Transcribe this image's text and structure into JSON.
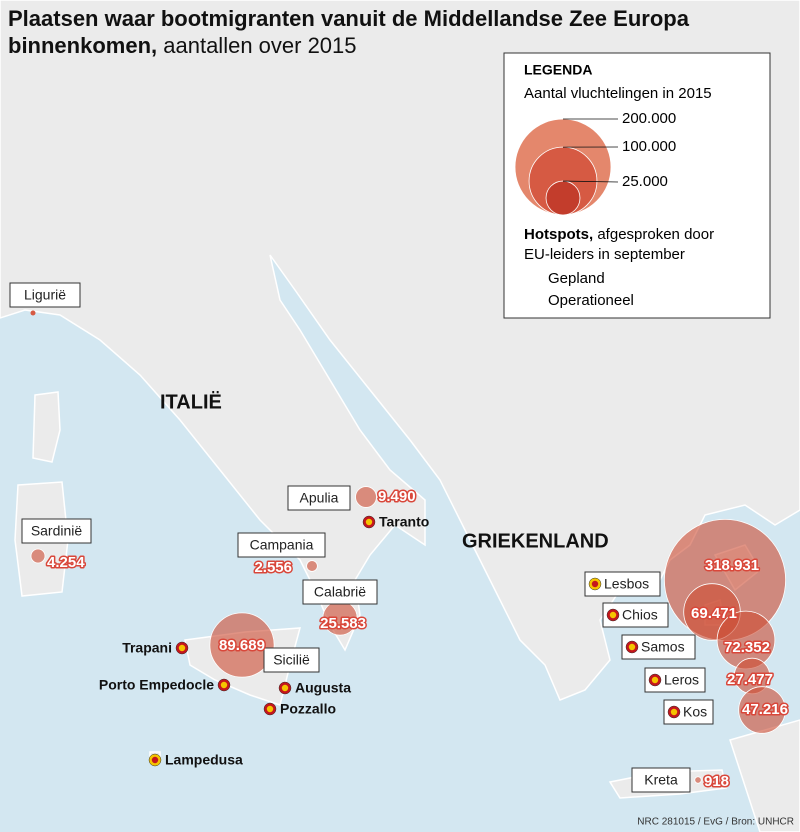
{
  "title_line1": "Plaatsen waar bootmigranten vanuit de Middellandse Zee Europa",
  "title_line2_bold": "binnenkomen,",
  "title_line2_rest": "aantallen over 2015",
  "legend": {
    "title": "LEGENDA",
    "subtitle": "Aantal vluchtelingen in 2015",
    "sizes": [
      {
        "value": 200000,
        "label": "200.000"
      },
      {
        "value": 100000,
        "label": "100.000"
      },
      {
        "value": 25000,
        "label": "25.000"
      }
    ],
    "hotspots_title": "Hotspots,",
    "hotspots_line1": "afgesproken door",
    "hotspots_line2": "EU-leiders in september",
    "planned": "Gepland",
    "operational": "Operationeel"
  },
  "countries": [
    "ITALIË",
    "GRIEKENLAND"
  ],
  "regions": [
    {
      "name": "Ligurië"
    },
    {
      "name": "Sardinië",
      "value": 4254,
      "value_label": "4.254"
    },
    {
      "name": "Apulia",
      "value": 9490,
      "value_label": "9.490"
    },
    {
      "name": "Campania",
      "value": 2556,
      "value_label": "2.556"
    },
    {
      "name": "Calabrië",
      "value": 25583,
      "value_label": "25.583"
    },
    {
      "name": "Sicilië",
      "value": 89689,
      "value_label": "89.689"
    },
    {
      "name": "Lesbos",
      "value": 318931,
      "value_label": "318.931",
      "hotspot": "operational"
    },
    {
      "name": "Chios",
      "value": 69471,
      "value_label": "69.471",
      "hotspot": "planned"
    },
    {
      "name": "Samos",
      "value": 72352,
      "value_label": "72.352",
      "hotspot": "planned"
    },
    {
      "name": "Leros",
      "value": 27477,
      "value_label": "27.477",
      "hotspot": "planned"
    },
    {
      "name": "Kos",
      "value": 47216,
      "value_label": "47.216",
      "hotspot": "planned"
    },
    {
      "name": "Kreta",
      "value": 918,
      "value_label": "918"
    }
  ],
  "hotspots": [
    {
      "name": "Taranto",
      "status": "planned"
    },
    {
      "name": "Trapani",
      "status": "planned"
    },
    {
      "name": "Porto Empedocle",
      "status": "planned"
    },
    {
      "name": "Augusta",
      "status": "planned"
    },
    {
      "name": "Pozzallo",
      "status": "planned"
    },
    {
      "name": "Lampedusa",
      "status": "operational"
    }
  ],
  "source": "NRC 281015 / EvG / Bron: UNHCR"
}
